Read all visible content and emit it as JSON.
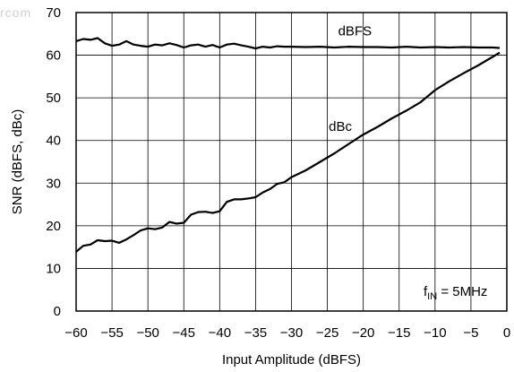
{
  "watermark": "rcom",
  "chart_data": {
    "type": "line",
    "title": "",
    "xlabel": "Input Amplitude (dBFS)",
    "ylabel": "SNR (dBFS, dBc)",
    "xlim": [
      -60,
      0
    ],
    "ylim": [
      0,
      70
    ],
    "xticks": [
      -60,
      -55,
      -50,
      -45,
      -40,
      -35,
      -30,
      -25,
      -20,
      -15,
      -10,
      -5,
      0
    ],
    "xtick_labels": [
      "−60",
      "−55",
      "−50",
      "−45",
      "−40",
      "−35",
      "−30",
      "−25",
      "−20",
      "−15",
      "−10",
      "−5",
      "0"
    ],
    "yticks": [
      0,
      10,
      20,
      30,
      40,
      50,
      60,
      70
    ],
    "ytick_labels": [
      "0",
      "10",
      "20",
      "30",
      "40",
      "50",
      "60",
      "70"
    ],
    "grid": true,
    "annotation": {
      "main": "f",
      "sub": "IN",
      "rest": " = 5MHz"
    },
    "series": [
      {
        "name": "dBFS",
        "color": "#000000",
        "x": [
          -60,
          -59,
          -58,
          -57,
          -56,
          -55,
          -54,
          -53,
          -52,
          -51,
          -50,
          -49,
          -48,
          -47,
          -46,
          -45,
          -44,
          -43,
          -42,
          -41,
          -40,
          -39,
          -38,
          -37,
          -36,
          -35,
          -34,
          -33,
          -32,
          -31,
          -30,
          -28,
          -26,
          -24,
          -22,
          -20,
          -18,
          -16,
          -14,
          -12,
          -10,
          -8,
          -6,
          -4,
          -2,
          -1
        ],
        "y": [
          63.3,
          63.8,
          63.6,
          64.0,
          62.8,
          62.2,
          62.5,
          63.3,
          62.5,
          62.2,
          62.0,
          62.5,
          62.3,
          62.8,
          62.4,
          61.8,
          62.3,
          62.5,
          62.0,
          62.4,
          61.8,
          62.5,
          62.7,
          62.3,
          62.0,
          61.6,
          62.0,
          61.8,
          62.1,
          62.0,
          62.0,
          61.9,
          62.0,
          61.8,
          62.0,
          61.9,
          61.9,
          61.8,
          62.0,
          61.8,
          61.9,
          61.8,
          61.9,
          61.8,
          61.8,
          61.7
        ]
      },
      {
        "name": "dBc",
        "color": "#000000",
        "x": [
          -60,
          -59,
          -58,
          -57,
          -56,
          -55,
          -54,
          -53,
          -52,
          -51,
          -50,
          -49,
          -48,
          -47,
          -46,
          -45,
          -44,
          -43,
          -42,
          -41,
          -40,
          -39,
          -38,
          -37,
          -36,
          -35,
          -34,
          -33,
          -32,
          -31,
          -30,
          -28,
          -26,
          -24,
          -22,
          -20,
          -18,
          -16,
          -14,
          -12,
          -10,
          -8,
          -6,
          -4,
          -2,
          -1
        ],
        "y": [
          13.9,
          15.3,
          15.6,
          16.6,
          16.4,
          16.5,
          16.0,
          16.8,
          17.8,
          18.9,
          19.4,
          19.2,
          19.6,
          20.9,
          20.5,
          20.7,
          22.6,
          23.2,
          23.3,
          23.0,
          23.4,
          25.6,
          26.2,
          26.2,
          26.4,
          26.7,
          27.8,
          28.6,
          29.8,
          30.2,
          31.4,
          33.0,
          35.0,
          37.0,
          39.2,
          41.4,
          43.2,
          45.2,
          47.0,
          49.0,
          51.8,
          53.9,
          55.8,
          57.6,
          59.6,
          60.6
        ]
      }
    ]
  }
}
